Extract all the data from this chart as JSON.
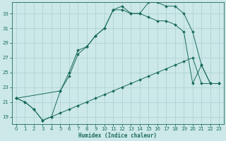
{
  "xlabel": "Humidex (Indice chaleur)",
  "bg_color": "#cce8e8",
  "line_color": "#1a6b5a",
  "grid_color": "#aacfcf",
  "xlim": [
    -0.5,
    23.5
  ],
  "ylim": [
    18.0,
    34.5
  ],
  "yticks": [
    19,
    21,
    23,
    25,
    27,
    29,
    31,
    33
  ],
  "xticks": [
    0,
    1,
    2,
    3,
    4,
    5,
    6,
    7,
    8,
    9,
    10,
    11,
    12,
    13,
    14,
    15,
    16,
    17,
    18,
    19,
    20,
    21,
    22,
    23
  ],
  "line1_x": [
    0,
    1,
    2,
    3,
    4,
    5,
    6,
    7,
    8,
    9,
    10,
    11,
    12,
    13,
    14,
    15,
    16,
    17,
    18,
    19,
    20,
    21,
    22,
    23
  ],
  "line1_y": [
    21.5,
    21.0,
    20.0,
    18.5,
    19.0,
    19.5,
    20.0,
    20.5,
    21.0,
    21.5,
    22.0,
    22.5,
    23.0,
    23.5,
    24.0,
    24.5,
    25.0,
    25.5,
    26.0,
    26.5,
    27.0,
    23.5,
    23.5,
    23.5
  ],
  "line2_x": [
    0,
    1,
    2,
    3,
    4,
    5,
    6,
    7,
    8,
    9,
    10,
    11,
    12,
    13,
    14,
    15,
    16,
    17,
    18,
    19,
    20,
    21,
    22,
    23
  ],
  "line2_y": [
    21.5,
    21.0,
    20.0,
    18.5,
    19.0,
    22.5,
    25.0,
    28.0,
    28.5,
    30.0,
    31.0,
    33.5,
    33.5,
    33.0,
    33.0,
    32.5,
    32.0,
    32.0,
    31.5,
    30.5,
    23.5,
    26.0,
    23.5,
    23.5
  ],
  "line3_x": [
    0,
    5,
    6,
    7,
    8,
    9,
    10,
    11,
    12,
    13,
    14,
    15,
    16,
    17,
    18,
    19,
    20,
    21,
    22,
    23
  ],
  "line3_y": [
    21.5,
    22.5,
    24.5,
    27.5,
    28.5,
    30.0,
    31.0,
    33.5,
    34.0,
    33.0,
    33.0,
    34.5,
    34.5,
    34.0,
    34.0,
    33.0,
    30.5,
    26.0,
    23.5,
    23.5
  ]
}
